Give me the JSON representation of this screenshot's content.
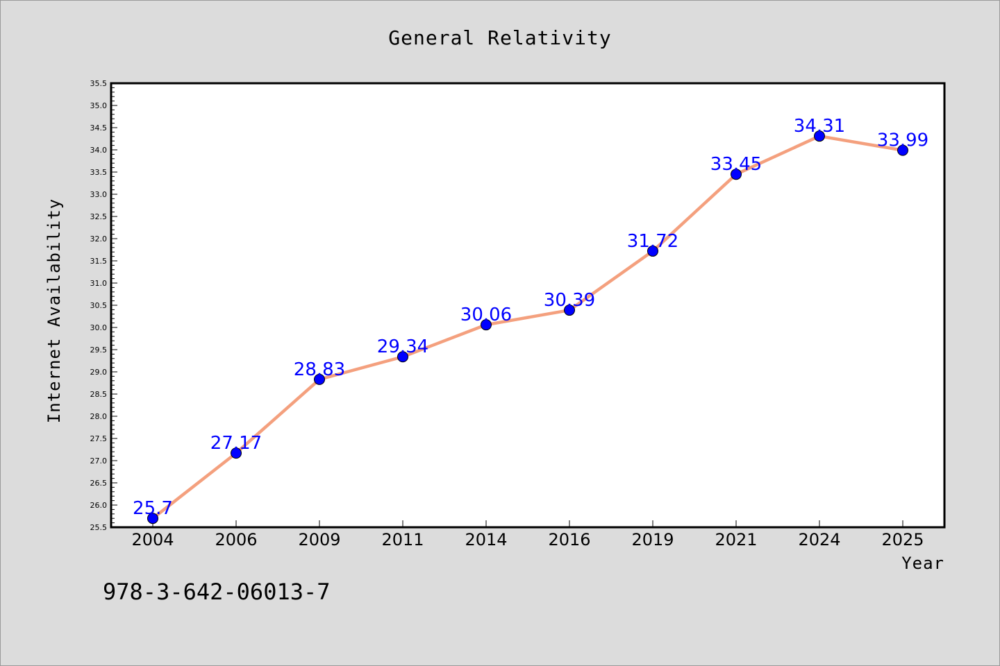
{
  "chart_data": {
    "type": "line",
    "title": "General Relativity",
    "xlabel": "Year",
    "ylabel": "Internet Availability",
    "categories": [
      "2004",
      "2006",
      "2009",
      "2011",
      "2014",
      "2016",
      "2019",
      "2021",
      "2024",
      "2025"
    ],
    "series": [
      {
        "values": [
          25.7,
          27.17,
          28.83,
          29.34,
          30.06,
          30.39,
          31.72,
          33.45,
          34.31,
          33.99
        ],
        "data_labels": [
          "25.7",
          "27.17",
          "28.83",
          "29.34",
          "30.06",
          "30.39",
          "31.72",
          "33.45",
          "34.31",
          "33.99"
        ],
        "line_color": "#f4a07e",
        "marker_color": "#0000ff"
      }
    ],
    "ylim": [
      25.5,
      35.5
    ],
    "yticks": [
      "25.5",
      "26.0",
      "26.5",
      "27.0",
      "27.5",
      "28.0",
      "28.5",
      "29.0",
      "29.5",
      "30.0",
      "30.5",
      "31.0",
      "31.5",
      "32.0",
      "32.5",
      "33.0",
      "33.5",
      "34.0",
      "34.5",
      "35.0",
      "35.5"
    ],
    "grid": false,
    "legend": "none",
    "annotation": "978-3-642-06013-7",
    "colors": {
      "background": "#dcdcdc",
      "plot_area": "#ffffff",
      "line": "#f4a07e",
      "marker": "#0000ff",
      "label": "#0000ff"
    }
  }
}
